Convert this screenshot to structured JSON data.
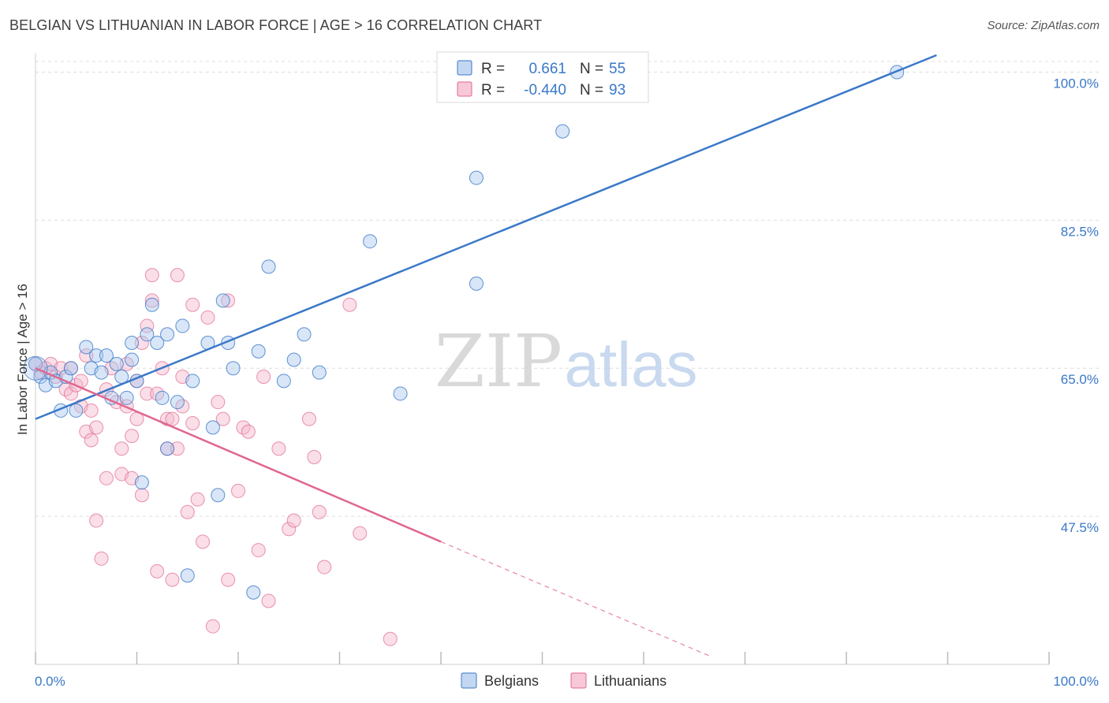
{
  "header": {
    "title": "BELGIAN VS LITHUANIAN IN LABOR FORCE | AGE > 16 CORRELATION CHART",
    "source": "Source: ZipAtlas.com"
  },
  "watermark": {
    "zip": "ZIP",
    "atlas": "atlas"
  },
  "colors": {
    "belgians": "#3a78c8",
    "belgians_fill": "#a9c7ee",
    "lithuanians": "#e0678f",
    "lithuanians_fill": "#f4b6cb",
    "grid": "#dddddd",
    "tick_text": "#3a78c8"
  },
  "stats": {
    "r_label": "R =",
    "n_label": "N =",
    "rows": [
      {
        "series": "Belgians",
        "r": "0.661",
        "n": "55"
      },
      {
        "series": "Lithuanians",
        "r": "-0.440",
        "n": "93"
      }
    ]
  },
  "legend": {
    "items": [
      "Belgians",
      "Lithuanians"
    ]
  },
  "chart_data": {
    "type": "scatter",
    "title": "BELGIAN VS LITHUANIAN IN LABOR FORCE | AGE > 16 CORRELATION CHART",
    "xlabel": "",
    "ylabel": "In Labor Force | Age > 16",
    "xlim": [
      0,
      100
    ],
    "ylim": [
      30.0,
      102.0
    ],
    "x_tick_labels": [
      "0.0%",
      "100.0%"
    ],
    "y_ticks": [
      47.5,
      65.0,
      82.5,
      100.0
    ],
    "y_tick_labels": [
      "47.5%",
      "65.0%",
      "82.5%",
      "100.0%"
    ],
    "grid": true,
    "legend_position": "bottom-center",
    "series": [
      {
        "name": "Belgians",
        "trend": {
          "x": [
            0,
            88.9
          ],
          "y": [
            59.0,
            102.0
          ]
        },
        "points": [
          [
            0,
            65.5
          ],
          [
            0.5,
            64
          ],
          [
            1,
            63
          ],
          [
            1.5,
            64.5
          ],
          [
            2,
            63.5
          ],
          [
            2.5,
            60
          ],
          [
            3,
            64
          ],
          [
            3.5,
            65
          ],
          [
            4,
            60
          ],
          [
            5,
            67.5
          ],
          [
            5.5,
            65
          ],
          [
            6,
            66.5
          ],
          [
            6.5,
            64.5
          ],
          [
            7,
            66.5
          ],
          [
            7.5,
            61.5
          ],
          [
            8,
            65.5
          ],
          [
            8.5,
            64
          ],
          [
            9,
            61.5
          ],
          [
            9.5,
            68
          ],
          [
            9.5,
            66
          ],
          [
            10,
            63.5
          ],
          [
            10.5,
            51.5
          ],
          [
            11,
            69
          ],
          [
            11.5,
            72.5
          ],
          [
            12,
            68
          ],
          [
            12.5,
            61.5
          ],
          [
            13,
            55.5
          ],
          [
            13,
            69
          ],
          [
            14,
            61
          ],
          [
            14.5,
            70
          ],
          [
            15,
            40.5
          ],
          [
            15.5,
            63.5
          ],
          [
            17,
            68
          ],
          [
            17.5,
            58
          ],
          [
            18.5,
            73
          ],
          [
            19,
            68
          ],
          [
            19.5,
            65
          ],
          [
            18,
            50
          ],
          [
            21.5,
            38.5
          ],
          [
            22,
            67
          ],
          [
            23,
            77
          ],
          [
            24.5,
            63.5
          ],
          [
            25.5,
            66
          ],
          [
            26.5,
            69
          ],
          [
            28,
            64.5
          ],
          [
            33,
            80
          ],
          [
            36,
            62
          ],
          [
            43.5,
            75
          ],
          [
            43.5,
            87.5
          ],
          [
            52,
            100
          ],
          [
            52,
            93
          ],
          [
            85,
            100
          ]
        ]
      },
      {
        "name": "Lithuanians",
        "trend": {
          "x": [
            0,
            40
          ],
          "y": [
            65.0,
            44.5
          ]
        },
        "trend_dashed": {
          "x": [
            40,
            66.5
          ],
          "y": [
            44.5,
            31.0
          ]
        },
        "points": [
          [
            0,
            65.5
          ],
          [
            0.5,
            64.5
          ],
          [
            1,
            65
          ],
          [
            1.5,
            65.5
          ],
          [
            2,
            64
          ],
          [
            2.5,
            65
          ],
          [
            3,
            62.5
          ],
          [
            3.5,
            62
          ],
          [
            3.5,
            65
          ],
          [
            4,
            63
          ],
          [
            4.5,
            63.5
          ],
          [
            4.5,
            60.5
          ],
          [
            5,
            57.5
          ],
          [
            5,
            66.5
          ],
          [
            5.5,
            60
          ],
          [
            5.5,
            56.5
          ],
          [
            6,
            58
          ],
          [
            6,
            47
          ],
          [
            6.5,
            42.5
          ],
          [
            7,
            62.5
          ],
          [
            7,
            52
          ],
          [
            7.5,
            65
          ],
          [
            8,
            61
          ],
          [
            8.5,
            55.5
          ],
          [
            8.5,
            52.5
          ],
          [
            9,
            60.5
          ],
          [
            9,
            65.5
          ],
          [
            9.5,
            57
          ],
          [
            9.5,
            52
          ],
          [
            10,
            59
          ],
          [
            10,
            63.5
          ],
          [
            10.5,
            68
          ],
          [
            10.5,
            50
          ],
          [
            11,
            70
          ],
          [
            11,
            62
          ],
          [
            11.5,
            76
          ],
          [
            11.5,
            73
          ],
          [
            12,
            62
          ],
          [
            12,
            41
          ],
          [
            12.5,
            65
          ],
          [
            13,
            55.5
          ],
          [
            13,
            59
          ],
          [
            13.5,
            59
          ],
          [
            13.5,
            40
          ],
          [
            14,
            55.5
          ],
          [
            14,
            76
          ],
          [
            14.5,
            64
          ],
          [
            14.5,
            60.5
          ],
          [
            15,
            48
          ],
          [
            15.5,
            58.5
          ],
          [
            15.5,
            72.5
          ],
          [
            16,
            49.5
          ],
          [
            16.5,
            44.5
          ],
          [
            17,
            71
          ],
          [
            17.5,
            34.5
          ],
          [
            18,
            61
          ],
          [
            18.5,
            59
          ],
          [
            19,
            73
          ],
          [
            19,
            40
          ],
          [
            20,
            50.5
          ],
          [
            20.5,
            58
          ],
          [
            21,
            57.5
          ],
          [
            22,
            43.5
          ],
          [
            22.5,
            64
          ],
          [
            23,
            37.5
          ],
          [
            24,
            55.5
          ],
          [
            25,
            46
          ],
          [
            25.5,
            47
          ],
          [
            27,
            59
          ],
          [
            27.5,
            54.5
          ],
          [
            28,
            48
          ],
          [
            28.5,
            41.5
          ],
          [
            31,
            72.5
          ],
          [
            32,
            45.5
          ],
          [
            35,
            33
          ]
        ]
      }
    ]
  }
}
